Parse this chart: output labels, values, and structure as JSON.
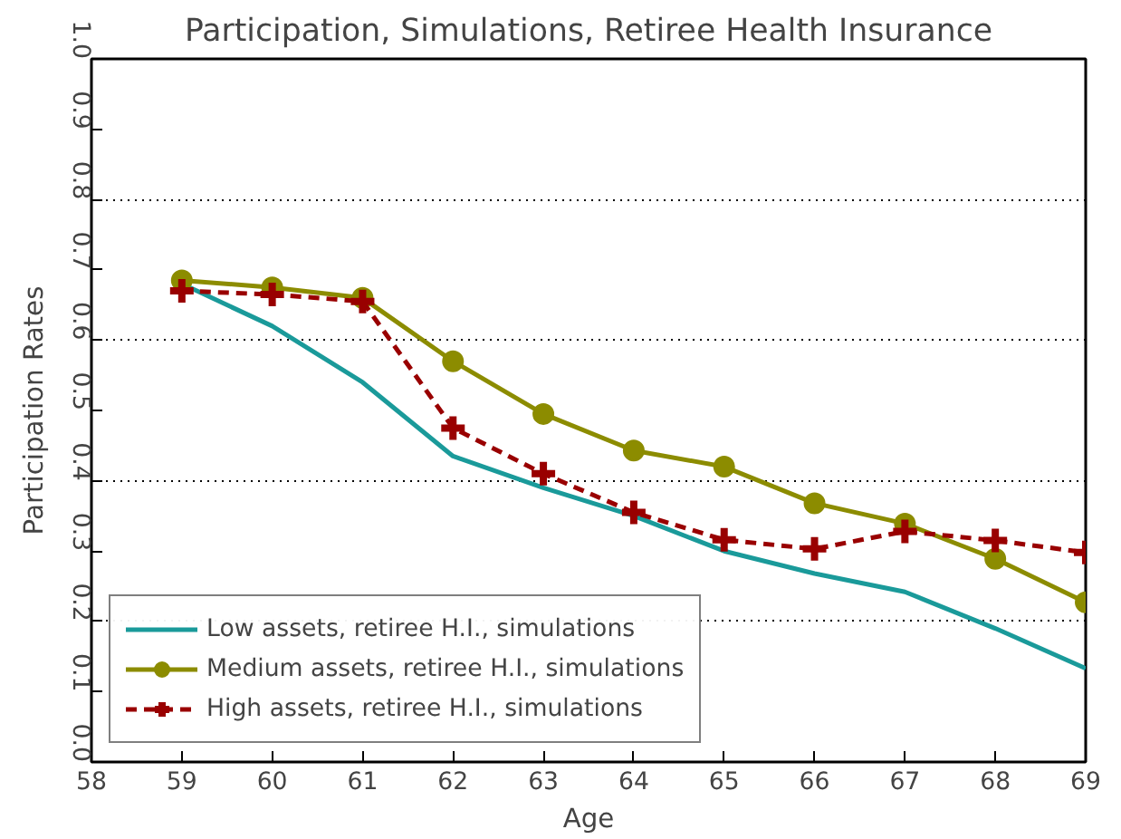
{
  "chart_data": {
    "type": "line",
    "title": "Participation, Simulations, Retiree Health Insurance",
    "xlabel": "Age",
    "ylabel": "Participation Rates",
    "x": [
      59,
      60,
      61,
      62,
      63,
      64,
      65,
      66,
      67,
      68,
      69
    ],
    "xlim": [
      58,
      69
    ],
    "xticks": [
      58,
      59,
      60,
      61,
      62,
      63,
      64,
      65,
      66,
      67,
      68,
      69
    ],
    "ylim": [
      0,
      1
    ],
    "yticks": [
      {
        "value": 0,
        "label": "0.0"
      },
      0.1,
      0.2,
      0.3,
      0.4,
      0.5,
      0.6,
      0.7,
      0.8,
      0.9,
      {
        "value": 1,
        "label": "1.0"
      }
    ],
    "grid": "y",
    "legend": "bottom left",
    "series": [
      {
        "name": "Low assets, retiree H.I., simulations",
        "color": "#1a9a9a",
        "marker": "none",
        "line_style": "solid",
        "values": [
          0.68,
          0.62,
          0.54,
          0.435,
          0.39,
          0.35,
          0.3,
          0.268,
          0.242,
          0.19,
          0.133
        ]
      },
      {
        "name": "Medium assets, retiree H.I., simulations",
        "color": "#8c8c00",
        "marker": "circle",
        "line_style": "solid",
        "values": [
          0.685,
          0.675,
          0.66,
          0.57,
          0.495,
          0.443,
          0.42,
          0.368,
          0.339,
          0.289,
          0.227
        ]
      },
      {
        "name": "High assets, retiree H.I., simulations",
        "color": "#990000",
        "marker": "cross",
        "line_style": "dashed",
        "values": [
          0.67,
          0.665,
          0.655,
          0.475,
          0.41,
          0.355,
          0.316,
          0.303,
          0.328,
          0.315,
          0.298
        ]
      }
    ]
  }
}
